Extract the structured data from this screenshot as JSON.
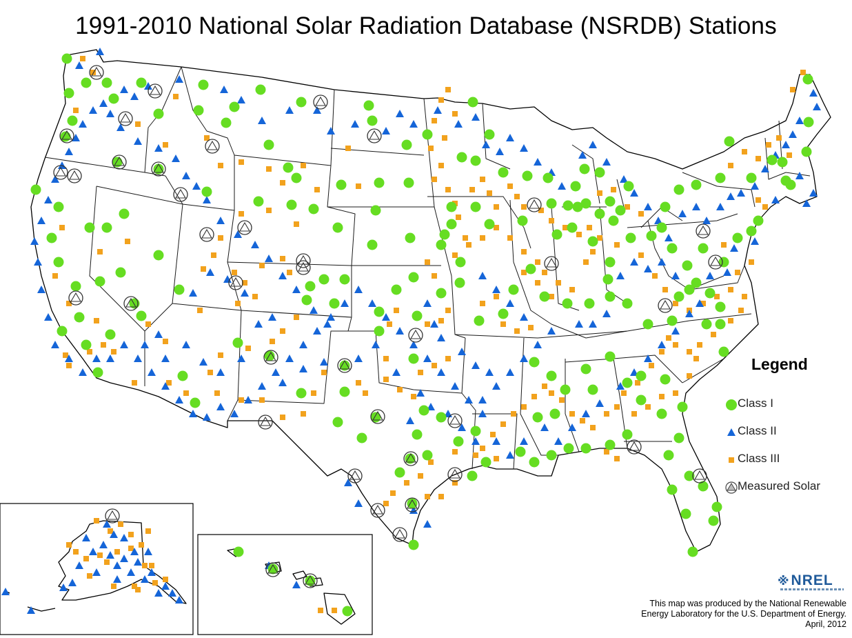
{
  "title": "1991-2010 National Solar Radiation Database (NSRDB) Stations",
  "legend": {
    "title": "Legend",
    "items": [
      {
        "key": "class1",
        "label": "Class I",
        "color": "#66dd22",
        "shape": "circle"
      },
      {
        "key": "class2",
        "label": "Class II",
        "color": "#1565d8",
        "shape": "triangle"
      },
      {
        "key": "class3",
        "label": "Class III",
        "color": "#f2a21d",
        "shape": "square"
      },
      {
        "key": "measured",
        "label": "Measured Solar",
        "color": "#808080",
        "shape": "ringed-triangle"
      }
    ]
  },
  "credit": {
    "line1": "This map was produced by the National Renewable",
    "line2": "Energy Laboratory for the U.S. Department of Energy.",
    "line3": "April, 2012"
  },
  "logo": {
    "text": "NREL",
    "icon": "nrel-logo-icon"
  },
  "colors": {
    "class1": "#66dd22",
    "class2": "#1565d8",
    "class3": "#f2a21d",
    "measured": "#808080",
    "border": "#000000"
  }
}
